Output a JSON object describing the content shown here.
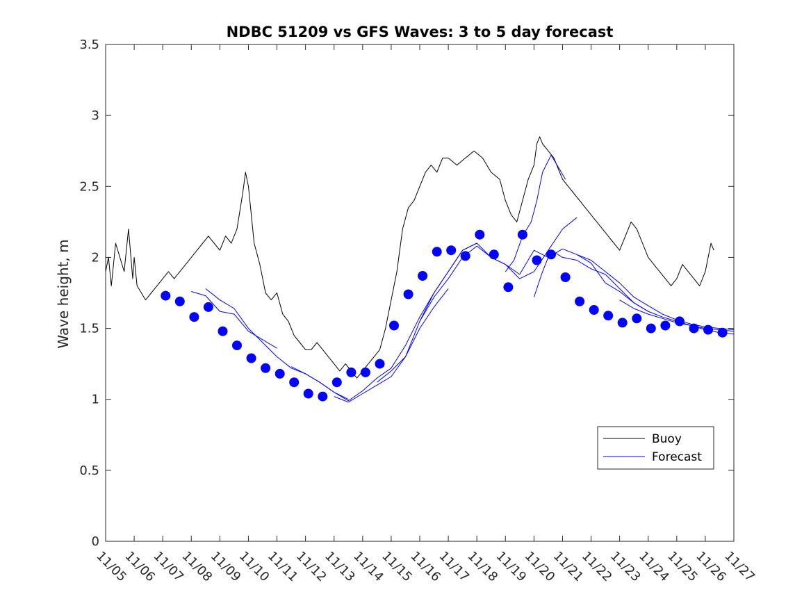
{
  "chart_data": {
    "type": "line",
    "title": "NDBC 51209 vs GFS Waves: 3 to 5 day forecast",
    "xlabel": "",
    "ylabel": "Wave height, m",
    "xlim": [
      0,
      22
    ],
    "ylim": [
      0,
      3.5
    ],
    "x_tick_values": [
      0,
      1,
      2,
      3,
      4,
      5,
      6,
      7,
      8,
      9,
      10,
      11,
      12,
      13,
      14,
      15,
      16,
      17,
      18,
      19,
      20,
      21,
      22
    ],
    "x_tick_labels": [
      "11/05",
      "11/06",
      "11/07",
      "11/08",
      "11/09",
      "11/10",
      "11/11",
      "11/12",
      "11/13",
      "11/14",
      "11/15",
      "11/16",
      "11/17",
      "11/18",
      "11/19",
      "11/20",
      "11/21",
      "11/22",
      "11/23",
      "11/24",
      "11/25",
      "11/26",
      "11/27"
    ],
    "y_tick_values": [
      0,
      0.5,
      1,
      1.5,
      2,
      2.5,
      3,
      3.5
    ],
    "y_tick_labels": [
      "0",
      "0.5",
      "1",
      "1.5",
      "2",
      "2.5",
      "3",
      "3.5"
    ],
    "legend": {
      "position": "lower-right",
      "entries": [
        "Buoy",
        "Forecast"
      ]
    },
    "colors": {
      "buoy": "#000000",
      "forecast": "#0000ff",
      "markers": "#0000ff"
    },
    "series": [
      {
        "name": "Buoy",
        "role": "buoy",
        "x": [
          0,
          0.1,
          0.2,
          0.35,
          0.5,
          0.65,
          0.8,
          0.95,
          1.0,
          1.1,
          1.25,
          1.4,
          1.6,
          1.8,
          2.0,
          2.2,
          2.4,
          2.6,
          2.8,
          3.0,
          3.2,
          3.4,
          3.6,
          3.8,
          4.0,
          4.2,
          4.4,
          4.6,
          4.8,
          4.9,
          5.0,
          5.1,
          5.2,
          5.4,
          5.6,
          5.8,
          6.0,
          6.2,
          6.4,
          6.6,
          6.8,
          7.0,
          7.2,
          7.4,
          7.6,
          7.8,
          8.0,
          8.2,
          8.4,
          8.6,
          8.8,
          9.0,
          9.2,
          9.4,
          9.6,
          9.8,
          10.0,
          10.2,
          10.4,
          10.6,
          10.8,
          11.0,
          11.2,
          11.4,
          11.6,
          11.8,
          12.0,
          12.3,
          12.6,
          12.9,
          13.2,
          13.5,
          13.8,
          14.0,
          14.2,
          14.4,
          14.6,
          14.8,
          15.0,
          15.1,
          15.2,
          15.3,
          15.5,
          15.7,
          15.9,
          16.0,
          16.2,
          16.4,
          16.6,
          16.8,
          17.0,
          17.2,
          17.4,
          17.6,
          17.8,
          18.0,
          18.2,
          18.4,
          18.6,
          18.8,
          19.0,
          19.2,
          19.4,
          19.6,
          19.8,
          20.0,
          20.2,
          20.4,
          20.6,
          20.8,
          21.0,
          21.1,
          21.2,
          21.3
        ],
        "y": [
          1.9,
          2.0,
          1.8,
          2.1,
          2.0,
          1.9,
          2.2,
          1.85,
          2.0,
          1.8,
          1.75,
          1.7,
          1.75,
          1.8,
          1.85,
          1.9,
          1.85,
          1.9,
          1.95,
          2.0,
          2.05,
          2.1,
          2.15,
          2.1,
          2.05,
          2.15,
          2.1,
          2.2,
          2.45,
          2.6,
          2.5,
          2.3,
          2.1,
          1.95,
          1.75,
          1.7,
          1.75,
          1.6,
          1.55,
          1.45,
          1.4,
          1.35,
          1.35,
          1.4,
          1.35,
          1.3,
          1.25,
          1.2,
          1.25,
          1.2,
          1.15,
          1.2,
          1.25,
          1.3,
          1.35,
          1.5,
          1.7,
          1.9,
          2.2,
          2.35,
          2.4,
          2.5,
          2.6,
          2.65,
          2.6,
          2.7,
          2.7,
          2.65,
          2.7,
          2.75,
          2.7,
          2.6,
          2.55,
          2.4,
          2.3,
          2.25,
          2.4,
          2.55,
          2.65,
          2.8,
          2.85,
          2.8,
          2.75,
          2.7,
          2.6,
          2.55,
          2.5,
          2.45,
          2.4,
          2.35,
          2.3,
          2.25,
          2.2,
          2.15,
          2.1,
          2.05,
          2.15,
          2.25,
          2.2,
          2.1,
          2.0,
          1.95,
          1.9,
          1.85,
          1.8,
          1.85,
          1.95,
          1.9,
          1.85,
          1.8,
          1.9,
          2.0,
          2.1,
          2.05
        ]
      },
      {
        "name": "Forecast run 1",
        "role": "forecast",
        "x": [
          3.0,
          3.5,
          4.0,
          4.5,
          5.0,
          5.5,
          6.0
        ],
        "y": [
          1.76,
          1.73,
          1.62,
          1.6,
          1.48,
          1.42,
          1.36
        ]
      },
      {
        "name": "Forecast run 2",
        "role": "forecast",
        "x": [
          3.5,
          4.0,
          4.5,
          5.0,
          5.5,
          6.0,
          6.5,
          7.0,
          7.5,
          8.0,
          8.5
        ],
        "y": [
          1.78,
          1.7,
          1.64,
          1.5,
          1.4,
          1.3,
          1.22,
          1.18,
          1.12,
          1.05,
          1.0
        ]
      },
      {
        "name": "Forecast run 3",
        "role": "forecast",
        "x": [
          6.5,
          7.0,
          7.5,
          8.0,
          8.5,
          9.0,
          9.5,
          10.0,
          10.5,
          11.0,
          11.5,
          12.0,
          12.5,
          13.0
        ],
        "y": [
          1.23,
          1.18,
          1.12,
          1.05,
          0.99,
          1.06,
          1.15,
          1.22,
          1.38,
          1.58,
          1.75,
          1.9,
          2.05,
          2.1
        ]
      },
      {
        "name": "Forecast run 4",
        "role": "forecast",
        "x": [
          8.0,
          8.5,
          9.0,
          9.5,
          10.0,
          10.5,
          11.0,
          11.5,
          12.0
        ],
        "y": [
          1.02,
          0.98,
          1.04,
          1.1,
          1.16,
          1.3,
          1.5,
          1.65,
          1.78
        ]
      },
      {
        "name": "Forecast run 5",
        "role": "forecast",
        "x": [
          9.5,
          10.0,
          10.5,
          11.0,
          11.5,
          12.0,
          12.5,
          13.0,
          13.5,
          14.0,
          14.5,
          15.0,
          15.5,
          16.0,
          16.5
        ],
        "y": [
          1.12,
          1.2,
          1.3,
          1.55,
          1.72,
          1.85,
          2.0,
          2.08,
          2.0,
          1.95,
          1.85,
          1.9,
          2.05,
          2.2,
          2.28
        ]
      },
      {
        "name": "Forecast run 6",
        "role": "forecast",
        "x": [
          11.0,
          11.5,
          12.0,
          12.5,
          13.0,
          13.5,
          14.0,
          14.5,
          15.0,
          15.5,
          16.0,
          16.5,
          17.0,
          17.5,
          18.0,
          18.5,
          19.0
        ],
        "y": [
          1.55,
          1.75,
          1.9,
          2.05,
          2.1,
          2.0,
          1.95,
          1.88,
          2.05,
          2.0,
          2.06,
          2.02,
          1.96,
          1.82,
          1.76,
          1.68,
          1.62
        ]
      },
      {
        "name": "Forecast run 7",
        "role": "forecast",
        "x": [
          14.0,
          14.3,
          14.6,
          14.9,
          15.1,
          15.3,
          15.6,
          15.9,
          16.1
        ],
        "y": [
          1.9,
          1.98,
          2.15,
          2.25,
          2.4,
          2.6,
          2.72,
          2.62,
          2.55
        ]
      },
      {
        "name": "Forecast run 8",
        "role": "forecast",
        "x": [
          15.0,
          15.3,
          15.6,
          16.0,
          16.5,
          17.0,
          17.5,
          18.0,
          18.5,
          19.0,
          19.5,
          20.0,
          20.5,
          21.0,
          21.5,
          22.0
        ],
        "y": [
          1.72,
          1.9,
          2.05,
          2.0,
          1.98,
          1.92,
          1.88,
          1.78,
          1.68,
          1.62,
          1.58,
          1.55,
          1.52,
          1.49,
          1.47,
          1.46
        ]
      },
      {
        "name": "Forecast run 9",
        "role": "forecast",
        "x": [
          16.5,
          17.0,
          17.5,
          18.0,
          18.5,
          19.0,
          19.5,
          20.0,
          20.5,
          21.0,
          21.5,
          22.0
        ],
        "y": [
          2.02,
          1.98,
          1.9,
          1.82,
          1.72,
          1.66,
          1.6,
          1.56,
          1.53,
          1.51,
          1.5,
          1.49
        ]
      },
      {
        "name": "Forecast run 10",
        "role": "forecast",
        "x": [
          18.0,
          18.5,
          19.0,
          19.5,
          20.0,
          20.5,
          21.0,
          21.5,
          22.0
        ],
        "y": [
          1.7,
          1.64,
          1.6,
          1.57,
          1.54,
          1.52,
          1.5,
          1.49,
          1.48
        ]
      }
    ],
    "markers": {
      "name": "Forecast points",
      "x": [
        2.1,
        2.6,
        3.1,
        3.6,
        4.1,
        4.6,
        5.1,
        5.6,
        6.1,
        6.6,
        7.1,
        7.6,
        8.1,
        8.6,
        9.1,
        9.6,
        10.1,
        10.6,
        11.1,
        11.6,
        12.1,
        12.6,
        13.1,
        13.6,
        14.1,
        14.6,
        15.1,
        15.6,
        16.1,
        16.6,
        17.1,
        17.6,
        18.1,
        18.6,
        19.1,
        19.6,
        20.1,
        20.6,
        21.1,
        21.6
      ],
      "y": [
        1.73,
        1.69,
        1.58,
        1.65,
        1.48,
        1.38,
        1.29,
        1.22,
        1.18,
        1.12,
        1.04,
        1.02,
        1.12,
        1.19,
        1.19,
        1.25,
        1.52,
        1.74,
        1.87,
        2.04,
        2.05,
        2.01,
        2.16,
        2.02,
        1.79,
        2.16,
        1.98,
        2.02,
        1.86,
        1.69,
        1.63,
        1.59,
        1.54,
        1.57,
        1.5,
        1.52,
        1.55,
        1.5,
        1.49,
        1.47
      ]
    }
  }
}
